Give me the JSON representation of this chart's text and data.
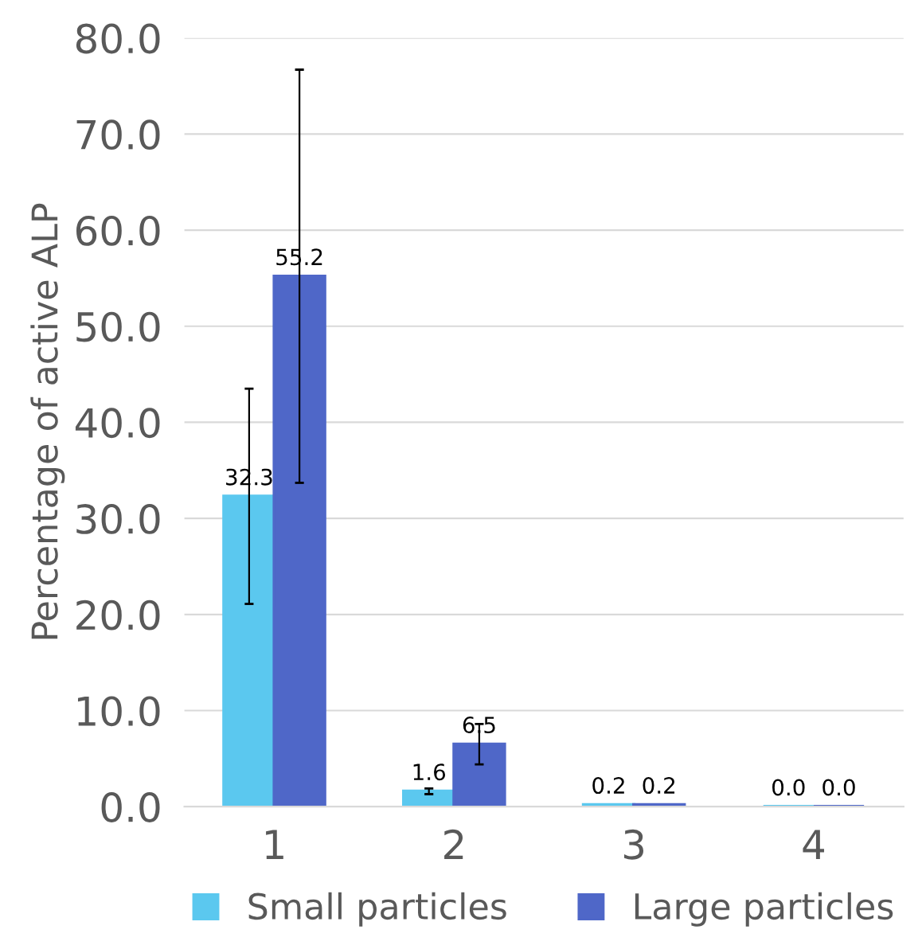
{
  "chart_data": {
    "type": "bar",
    "ylabel": "Percentage of active ALP",
    "categories": [
      "1",
      "2",
      "3",
      "4"
    ],
    "series": [
      {
        "name": "Small particles",
        "color": "#5bc8ef",
        "values": [
          32.3,
          1.6,
          0.2,
          0
        ],
        "errors": [
          11.2,
          0.3,
          null,
          null
        ],
        "value_labels": [
          "32.3",
          "1.6",
          "0.2",
          "0.0"
        ]
      },
      {
        "name": "Large particles",
        "color": "#4f67c8",
        "values": [
          55.2,
          6.5,
          0.2,
          0
        ],
        "errors": [
          21.5,
          2.1,
          null,
          null
        ],
        "value_labels": [
          "55.2",
          "6.5",
          "0.2",
          "0.0"
        ]
      }
    ],
    "ylim": [
      0,
      80
    ],
    "yticks": [
      {
        "value": 0,
        "label": "0.0"
      },
      {
        "value": 10,
        "label": "10.0"
      },
      {
        "value": 20,
        "label": "20.0"
      },
      {
        "value": 30,
        "label": "30.0"
      },
      {
        "value": 40,
        "label": "40.0"
      },
      {
        "value": 50,
        "label": "50.0"
      },
      {
        "value": 60,
        "label": "60.0"
      },
      {
        "value": 70,
        "label": "70.0"
      },
      {
        "value": 80,
        "label": "80.0"
      }
    ],
    "grid": "y",
    "legend": "bottom"
  }
}
